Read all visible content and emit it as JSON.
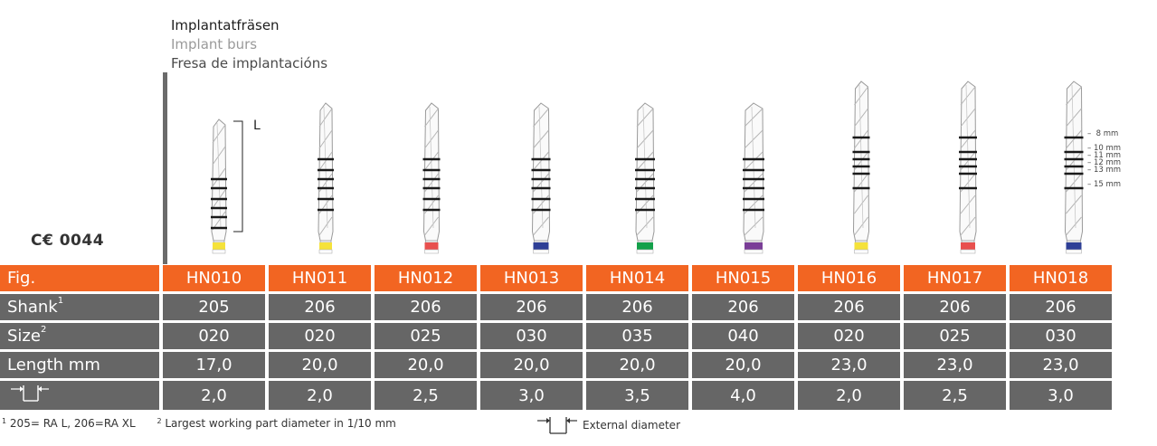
{
  "titles": {
    "german": "Implantatfräsen",
    "english": "Implant burs",
    "spanish": "Fresa de implantacións"
  },
  "ce_mark": "C€ 0044",
  "length_label": "L",
  "depth_marks": [
    "8 mm",
    "10 mm",
    "11 mm",
    "12 mm",
    "13 mm",
    "15 mm"
  ],
  "colors": {
    "orange": "#f26522",
    "grey": "#666666",
    "yellow": "#f5e23a",
    "red": "#e8504e",
    "blue": "#2e3f96",
    "green": "#13a04a",
    "purple": "#7a3e97"
  },
  "burs": [
    {
      "fig": "HN010",
      "ring": "yellow"
    },
    {
      "fig": "HN011",
      "ring": "yellow"
    },
    {
      "fig": "HN012",
      "ring": "red"
    },
    {
      "fig": "HN013",
      "ring": "blue"
    },
    {
      "fig": "HN014",
      "ring": "green"
    },
    {
      "fig": "HN015",
      "ring": "purple"
    },
    {
      "fig": "HN016",
      "ring": "yellow"
    },
    {
      "fig": "HN017",
      "ring": "red"
    },
    {
      "fig": "HN018",
      "ring": "blue"
    }
  ],
  "table": {
    "fig_label": "Fig.",
    "shank_label": "Shank",
    "shank_sup": "1",
    "size_label": "Size",
    "size_sup": "2",
    "length_label": "Length mm",
    "fig": [
      "HN010",
      "HN011",
      "HN012",
      "HN013",
      "HN014",
      "HN015",
      "HN016",
      "HN017",
      "HN018"
    ],
    "shank": [
      "205",
      "206",
      "206",
      "206",
      "206",
      "206",
      "206",
      "206",
      "206"
    ],
    "size": [
      "020",
      "020",
      "025",
      "030",
      "035",
      "040",
      "020",
      "025",
      "030"
    ],
    "length": [
      "17,0",
      "20,0",
      "20,0",
      "20,0",
      "20,0",
      "20,0",
      "23,0",
      "23,0",
      "23,0"
    ],
    "ext_diameter": [
      "2,0",
      "2,0",
      "2,5",
      "3,0",
      "3,5",
      "4,0",
      "2,0",
      "2,5",
      "3,0"
    ]
  },
  "footnotes": {
    "note1_sup": "1",
    "note1": "205= RA L, 206=RA XL",
    "note2_sup": "2",
    "note2": "Largest working part diameter in 1/10 mm",
    "ext_label": "External diameter"
  }
}
